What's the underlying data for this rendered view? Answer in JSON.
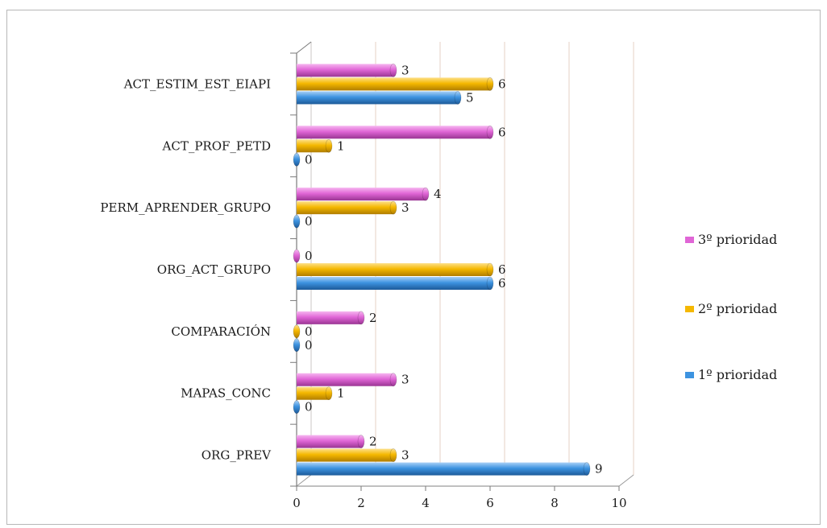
{
  "chart_data": {
    "type": "bar",
    "orientation": "horizontal",
    "categories": [
      "ACT_ESTIM_EST_EIAPI",
      "ACT_PROF_PETD",
      "PERM_APRENDER_GRUPO",
      "ORG_ACT_GRUPO",
      "COMPARACIÓN",
      "MAPAS_CONC",
      "ORG_PREV"
    ],
    "series": [
      {
        "name": "3º prioridad",
        "color": "#e066d6",
        "values": [
          3,
          6,
          4,
          0,
          2,
          3,
          2
        ]
      },
      {
        "name": "2º prioridad",
        "color": "#f5b800",
        "values": [
          6,
          1,
          3,
          6,
          0,
          1,
          3
        ]
      },
      {
        "name": "1º prioridad",
        "color": "#3d93e0",
        "values": [
          5,
          0,
          0,
          6,
          0,
          0,
          9
        ]
      }
    ],
    "xlim": [
      0,
      10
    ],
    "xticks": [
      "0",
      "2",
      "4",
      "6",
      "8",
      "10"
    ],
    "grid": true,
    "legend_position": "right",
    "style": "3d-cylinder"
  }
}
